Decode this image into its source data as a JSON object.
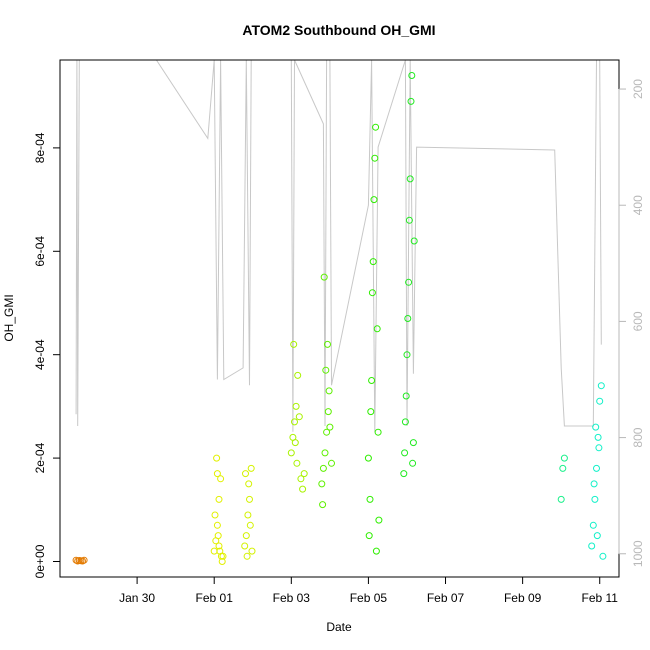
{
  "chart_data": {
    "type": "scatter",
    "title": "ATOM2 Southbound OH_GMI",
    "xlabel": "Date",
    "ylabel": "OH_GMI",
    "x_axis": {
      "type": "date",
      "range": [
        "2016-01-28T00:00",
        "2016-02-11T12:00"
      ],
      "ticks": [
        {
          "value": "2016-01-30",
          "label": "Jan 30"
        },
        {
          "value": "2016-02-01",
          "label": "Feb 01"
        },
        {
          "value": "2016-02-03",
          "label": "Feb 03"
        },
        {
          "value": "2016-02-05",
          "label": "Feb 05"
        },
        {
          "value": "2016-02-07",
          "label": "Feb 07"
        },
        {
          "value": "2016-02-09",
          "label": "Feb 09"
        },
        {
          "value": "2016-02-11",
          "label": "Feb 11"
        }
      ]
    },
    "y_axis": {
      "range": [
        -3e-05,
        0.00097
      ],
      "ticks": [
        {
          "value": 0,
          "label": "0e+00"
        },
        {
          "value": 0.0002,
          "label": "2e-04"
        },
        {
          "value": 0.0004,
          "label": "4e-04"
        },
        {
          "value": 0.0006,
          "label": "6e-04"
        },
        {
          "value": 0.0008,
          "label": "8e-04"
        }
      ]
    },
    "y2_axis": {
      "range": [
        1040,
        150
      ],
      "color": "#b8b8b8",
      "ticks": [
        {
          "value": 200,
          "label": "200"
        },
        {
          "value": 400,
          "label": "400"
        },
        {
          "value": 600,
          "label": "600"
        },
        {
          "value": 800,
          "label": "800"
        },
        {
          "value": 1000,
          "label": "1000"
        }
      ]
    },
    "grid": false,
    "line_color": "#c8c8c8",
    "series": [
      {
        "color": "#e37a00",
        "points": [
          [
            "2016-01-28T10:00",
            2.5e-06
          ],
          [
            "2016-01-28T11:00",
            1e-06
          ],
          [
            "2016-01-28T12:00",
            2e-06
          ],
          [
            "2016-01-28T13:00",
            1.5e-06
          ],
          [
            "2016-01-28T14:00",
            1e-06
          ],
          [
            "2016-01-28T15:00",
            2.5e-06
          ]
        ]
      },
      {
        "color": "#e2f000",
        "points": [
          [
            "2016-02-01T00:00",
            2e-05
          ],
          [
            "2016-02-01T01:00",
            4e-05
          ],
          [
            "2016-02-01T02:00",
            7e-05
          ],
          [
            "2016-02-01T03:00",
            0.00012
          ],
          [
            "2016-02-01T04:00",
            0.00016
          ],
          [
            "2016-02-01T05:00",
            0.0
          ],
          [
            "2016-02-01T01:30",
            0.0002
          ],
          [
            "2016-02-01T02:30",
            5e-05
          ],
          [
            "2016-02-01T03:30",
            2e-05
          ],
          [
            "2016-02-01T04:30",
            1e-05
          ],
          [
            "2016-02-01T00:30",
            9e-05
          ],
          [
            "2016-02-01T02:00",
            0.00017
          ],
          [
            "2016-02-01T03:00",
            3e-05
          ],
          [
            "2016-02-01T05:30",
            1e-05
          ]
        ]
      },
      {
        "color": "#d4f200",
        "points": [
          [
            "2016-02-01T19:00",
            3e-05
          ],
          [
            "2016-02-01T20:00",
            5e-05
          ],
          [
            "2016-02-01T21:00",
            9e-05
          ],
          [
            "2016-02-01T22:00",
            0.00012
          ],
          [
            "2016-02-01T23:00",
            0.00018
          ],
          [
            "2016-02-01T20:30",
            1e-05
          ],
          [
            "2016-02-01T21:30",
            0.00015
          ],
          [
            "2016-02-01T22:30",
            7e-05
          ],
          [
            "2016-02-01T19:30",
            0.00017
          ],
          [
            "2016-02-01T23:30",
            2e-05
          ]
        ]
      },
      {
        "color": "#a9f200",
        "points": [
          [
            "2016-02-03T00:00",
            0.00021
          ],
          [
            "2016-02-03T01:00",
            0.00024
          ],
          [
            "2016-02-03T02:00",
            0.00027
          ],
          [
            "2016-02-03T03:00",
            0.0003
          ],
          [
            "2016-02-03T04:00",
            0.00036
          ],
          [
            "2016-02-03T01:30",
            0.00042
          ],
          [
            "2016-02-03T02:30",
            0.00023
          ],
          [
            "2016-02-03T03:30",
            0.00019
          ],
          [
            "2016-02-03T05:00",
            0.00028
          ],
          [
            "2016-02-03T06:00",
            0.00016
          ],
          [
            "2016-02-03T07:00",
            0.00014
          ],
          [
            "2016-02-03T08:00",
            0.00017
          ]
        ]
      },
      {
        "color": "#5ef000",
        "points": [
          [
            "2016-02-03T19:00",
            0.00015
          ],
          [
            "2016-02-03T20:00",
            0.00018
          ],
          [
            "2016-02-03T21:00",
            0.00021
          ],
          [
            "2016-02-03T22:00",
            0.00025
          ],
          [
            "2016-02-03T23:00",
            0.00029
          ],
          [
            "2016-02-03T20:30",
            0.00055
          ],
          [
            "2016-02-03T21:30",
            0.00037
          ],
          [
            "2016-02-03T22:30",
            0.00042
          ],
          [
            "2016-02-03T19:30",
            0.00011
          ],
          [
            "2016-02-03T23:30",
            0.00033
          ],
          [
            "2016-02-04T00:00",
            0.00026
          ],
          [
            "2016-02-04T01:00",
            0.00019
          ]
        ]
      },
      {
        "color": "#2fee00",
        "points": [
          [
            "2016-02-05T00:00",
            0.0002
          ],
          [
            "2016-02-05T00:30",
            5e-05
          ],
          [
            "2016-02-05T01:00",
            0.00012
          ],
          [
            "2016-02-05T01:30",
            0.00029
          ],
          [
            "2016-02-05T02:00",
            0.00035
          ],
          [
            "2016-02-05T02:30",
            0.00052
          ],
          [
            "2016-02-05T03:00",
            0.00058
          ],
          [
            "2016-02-05T03:30",
            0.0007
          ],
          [
            "2016-02-05T04:00",
            0.00078
          ],
          [
            "2016-02-05T04:30",
            0.00084
          ],
          [
            "2016-02-05T05:00",
            2e-05
          ],
          [
            "2016-02-05T05:30",
            0.00045
          ],
          [
            "2016-02-05T06:00",
            0.00025
          ],
          [
            "2016-02-05T06:30",
            8e-05
          ]
        ]
      },
      {
        "color": "#20ea20",
        "points": [
          [
            "2016-02-05T22:00",
            0.00017
          ],
          [
            "2016-02-05T22:30",
            0.00021
          ],
          [
            "2016-02-05T23:00",
            0.00027
          ],
          [
            "2016-02-05T23:30",
            0.00032
          ],
          [
            "2016-02-06T00:00",
            0.0004
          ],
          [
            "2016-02-06T00:30",
            0.00047
          ],
          [
            "2016-02-06T01:00",
            0.00054
          ],
          [
            "2016-02-06T01:30",
            0.00066
          ],
          [
            "2016-02-06T02:00",
            0.00074
          ],
          [
            "2016-02-06T02:30",
            0.00089
          ],
          [
            "2016-02-06T03:00",
            0.00094
          ],
          [
            "2016-02-06T03:30",
            0.00019
          ],
          [
            "2016-02-06T04:00",
            0.00023
          ],
          [
            "2016-02-06T04:30",
            0.00062
          ]
        ]
      },
      {
        "color": "#19f08a",
        "points": [
          [
            "2016-02-10T00:00",
            0.00012
          ],
          [
            "2016-02-10T01:00",
            0.00018
          ],
          [
            "2016-02-10T02:00",
            0.0002
          ]
        ]
      },
      {
        "color": "#11f0c8",
        "points": [
          [
            "2016-02-10T19:00",
            3e-05
          ],
          [
            "2016-02-10T20:00",
            7e-05
          ],
          [
            "2016-02-10T21:00",
            0.00012
          ],
          [
            "2016-02-10T22:00",
            0.00018
          ],
          [
            "2016-02-10T23:00",
            0.00024
          ],
          [
            "2016-02-11T00:00",
            0.00031
          ],
          [
            "2016-02-11T01:00",
            0.00034
          ],
          [
            "2016-02-11T02:00",
            1e-05
          ],
          [
            "2016-02-10T20:30",
            0.00015
          ],
          [
            "2016-02-10T21:30",
            0.00026
          ],
          [
            "2016-02-10T22:30",
            5e-05
          ],
          [
            "2016-02-10T23:30",
            0.00022
          ]
        ]
      }
    ],
    "pressure_line": [
      [
        "2016-01-28T10:00",
        760
      ],
      [
        "2016-01-28T10:30",
        150
      ],
      [
        "2016-01-28T11:00",
        780
      ],
      [
        "2016-01-28T12:00",
        150
      ],
      [
        "2016-01-30T12:00",
        150
      ],
      [
        "2016-01-31T20:00",
        285
      ],
      [
        "2016-02-01T00:00",
        150
      ],
      [
        "2016-02-01T02:00",
        700
      ],
      [
        "2016-02-01T04:00",
        150
      ],
      [
        "2016-02-01T06:00",
        700
      ],
      [
        "2016-02-01T18:00",
        680
      ],
      [
        "2016-02-01T20:00",
        150
      ],
      [
        "2016-02-01T22:00",
        710
      ],
      [
        "2016-02-01T23:00",
        150
      ],
      [
        "2016-02-03T00:00",
        150
      ],
      [
        "2016-02-03T01:00",
        790
      ],
      [
        "2016-02-03T02:00",
        150
      ],
      [
        "2016-02-03T20:00",
        260
      ],
      [
        "2016-02-03T21:00",
        780
      ],
      [
        "2016-02-03T22:00",
        150
      ],
      [
        "2016-02-04T00:00",
        150
      ],
      [
        "2016-02-04T01:00",
        710
      ],
      [
        "2016-02-05T00:00",
        400
      ],
      [
        "2016-02-05T02:00",
        150
      ],
      [
        "2016-02-05T04:00",
        790
      ],
      [
        "2016-02-05T06:00",
        300
      ],
      [
        "2016-02-05T23:00",
        150
      ],
      [
        "2016-02-06T00:00",
        780
      ],
      [
        "2016-02-06T02:00",
        150
      ],
      [
        "2016-02-06T04:00",
        690
      ],
      [
        "2016-02-06T06:00",
        300
      ],
      [
        "2016-02-09T20:00",
        305
      ],
      [
        "2016-02-10T00:00",
        680
      ],
      [
        "2016-02-10T02:00",
        780
      ],
      [
        "2016-02-10T20:00",
        780
      ],
      [
        "2016-02-10T22:00",
        150
      ],
      [
        "2016-02-11T00:00",
        150
      ],
      [
        "2016-02-11T01:00",
        640
      ]
    ]
  }
}
